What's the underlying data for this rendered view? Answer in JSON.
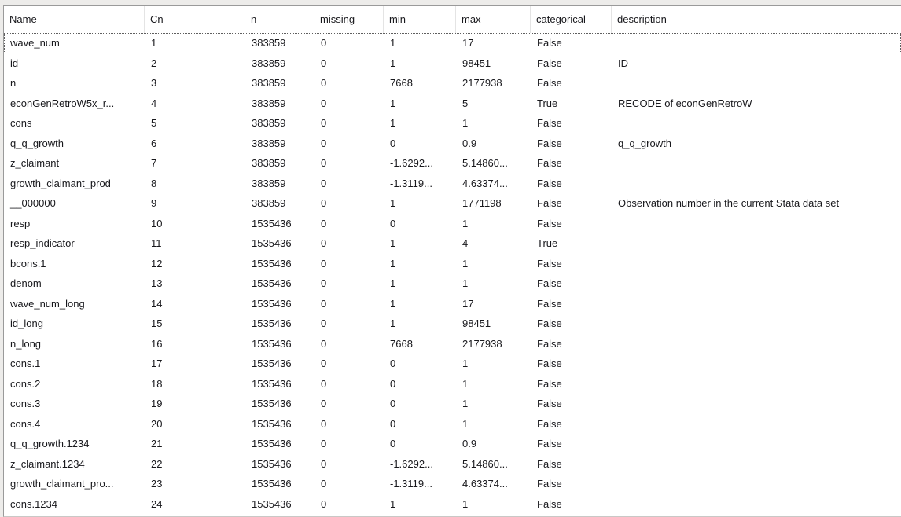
{
  "colors": {
    "chrome": "#edecea",
    "border": "#9a9a9a",
    "header_separator": "#e4e4e4",
    "text": "#18181c"
  },
  "table": {
    "columns": [
      {
        "key": "name",
        "label": "Name"
      },
      {
        "key": "cn",
        "label": "Cn"
      },
      {
        "key": "n",
        "label": "n"
      },
      {
        "key": "missing",
        "label": "missing"
      },
      {
        "key": "min",
        "label": "min"
      },
      {
        "key": "max",
        "label": "max"
      },
      {
        "key": "categorical",
        "label": "categorical"
      },
      {
        "key": "description",
        "label": "description"
      }
    ],
    "focused_row_index": 0,
    "rows": [
      [
        "wave_num",
        "1",
        "383859",
        "0",
        "1",
        "17",
        "False",
        ""
      ],
      [
        "id",
        "2",
        "383859",
        "0",
        "1",
        "98451",
        "False",
        "ID"
      ],
      [
        "n",
        "3",
        "383859",
        "0",
        "7668",
        "2177938",
        "False",
        ""
      ],
      [
        "econGenRetroW5x_r...",
        "4",
        "383859",
        "0",
        "1",
        "5",
        "True",
        "RECODE of econGenRetroW"
      ],
      [
        "cons",
        "5",
        "383859",
        "0",
        "1",
        "1",
        "False",
        ""
      ],
      [
        "q_q_growth",
        "6",
        "383859",
        "0",
        "0",
        "0.9",
        "False",
        "q_q_growth"
      ],
      [
        "z_claimant",
        "7",
        "383859",
        "0",
        "-1.6292...",
        "5.14860...",
        "False",
        ""
      ],
      [
        "growth_claimant_prod",
        "8",
        "383859",
        "0",
        "-1.3119...",
        "4.63374...",
        "False",
        ""
      ],
      [
        "__000000",
        "9",
        "383859",
        "0",
        "1",
        "1771198",
        "False",
        "Observation number in the current Stata data set"
      ],
      [
        "resp",
        "10",
        "1535436",
        "0",
        "0",
        "1",
        "False",
        ""
      ],
      [
        "resp_indicator",
        "11",
        "1535436",
        "0",
        "1",
        "4",
        "True",
        ""
      ],
      [
        "bcons.1",
        "12",
        "1535436",
        "0",
        "1",
        "1",
        "False",
        ""
      ],
      [
        "denom",
        "13",
        "1535436",
        "0",
        "1",
        "1",
        "False",
        ""
      ],
      [
        "wave_num_long",
        "14",
        "1535436",
        "0",
        "1",
        "17",
        "False",
        ""
      ],
      [
        "id_long",
        "15",
        "1535436",
        "0",
        "1",
        "98451",
        "False",
        ""
      ],
      [
        "n_long",
        "16",
        "1535436",
        "0",
        "7668",
        "2177938",
        "False",
        ""
      ],
      [
        "cons.1",
        "17",
        "1535436",
        "0",
        "0",
        "1",
        "False",
        ""
      ],
      [
        "cons.2",
        "18",
        "1535436",
        "0",
        "0",
        "1",
        "False",
        ""
      ],
      [
        "cons.3",
        "19",
        "1535436",
        "0",
        "0",
        "1",
        "False",
        ""
      ],
      [
        "cons.4",
        "20",
        "1535436",
        "0",
        "0",
        "1",
        "False",
        ""
      ],
      [
        "q_q_growth.1234",
        "21",
        "1535436",
        "0",
        "0",
        "0.9",
        "False",
        ""
      ],
      [
        "z_claimant.1234",
        "22",
        "1535436",
        "0",
        "-1.6292...",
        "5.14860...",
        "False",
        ""
      ],
      [
        "growth_claimant_pro...",
        "23",
        "1535436",
        "0",
        "-1.3119...",
        "4.63374...",
        "False",
        ""
      ],
      [
        "cons.1234",
        "24",
        "1535436",
        "0",
        "1",
        "1",
        "False",
        ""
      ]
    ]
  }
}
